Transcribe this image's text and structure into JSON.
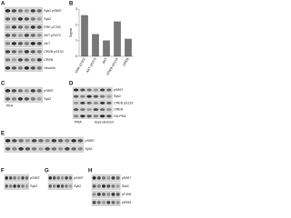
{
  "panels": [
    {
      "letter": "A",
      "rows": [
        "Syk2 pS897",
        "Syk2",
        "ERK pT202",
        "AKT pS473",
        "AKT",
        "CREB pS133",
        "CREB",
        "Vinculin"
      ]
    },
    {
      "letter": "B",
      "ylabel": "Signal",
      "categories": [
        "ERK pT202",
        "AKT pS473",
        "AKT",
        "CREB pS133",
        "CREB"
      ],
      "values": [
        2.6,
        1.4,
        1.0,
        2.2,
        1.1
      ],
      "ylim": [
        0,
        3
      ],
      "yticks": [
        0,
        1,
        2,
        3
      ]
    },
    {
      "letter": "C",
      "rows": [
        "pS897",
        "Syk2"
      ],
      "footer": [
        "PKA"
      ]
    },
    {
      "letter": "D",
      "rows": [
        "pS897",
        "Syk2",
        "CREB pS133",
        "CREB",
        "HA-PKA"
      ],
      "footer": [
        "PMA",
        "Isoproterenol"
      ]
    },
    {
      "letter": "E",
      "rows": [
        "pS897",
        "Syk2"
      ]
    },
    {
      "letter": "F",
      "rows": [
        "pS897",
        "Syk2"
      ]
    },
    {
      "letter": "G",
      "rows": [
        "pS897",
        "Syk2"
      ]
    },
    {
      "letter": "H",
      "rows": [
        "pS897",
        "Syk2",
        "pT408",
        "pS555"
      ]
    }
  ]
}
